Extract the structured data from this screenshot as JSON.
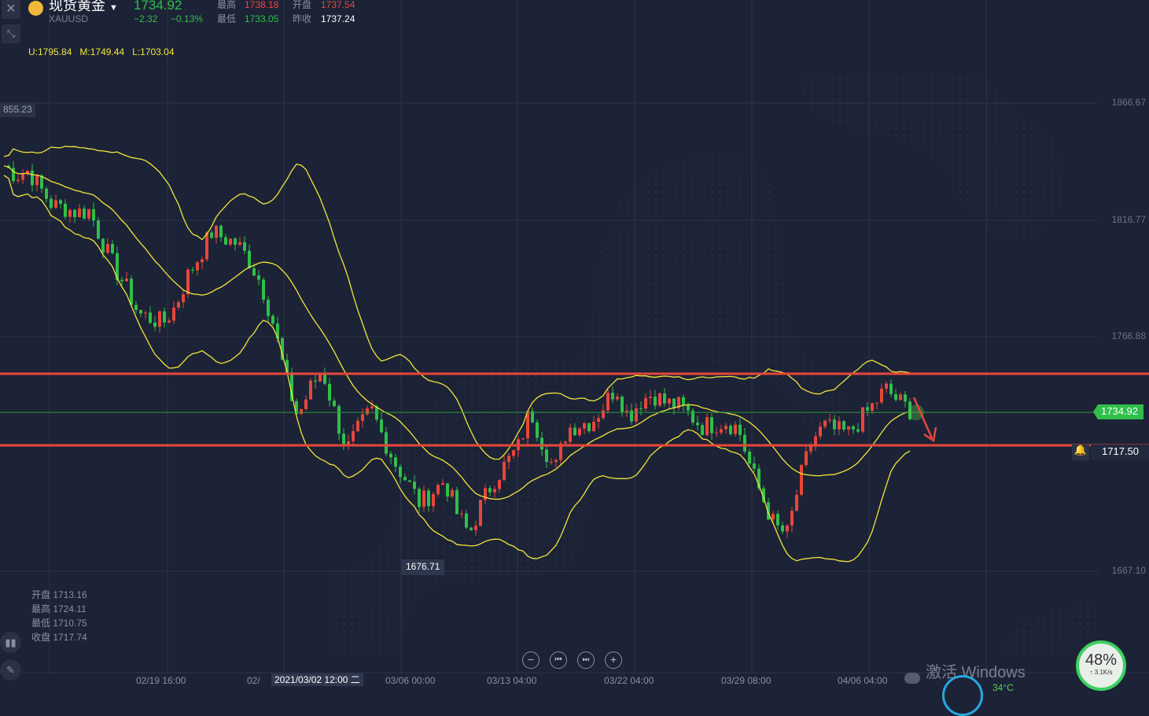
{
  "header": {
    "name": "现货黄金",
    "code": "XAUUSD",
    "price": "1734.92",
    "change": "−2.32",
    "change_pct": "−0.13%",
    "high_label": "最高",
    "high": "1738.18",
    "open_label": "开盘",
    "open": "1737.54",
    "low_label": "最低",
    "low": "1733.05",
    "prev_label": "昨收",
    "prev": "1737.24"
  },
  "bollinger": {
    "u": "U:1795.84",
    "m": "M:1749.44",
    "l": "L:1703.04"
  },
  "cursor": {
    "price": "855.23",
    "time": "2021/03/02 12:00 二"
  },
  "low_marker": "1676.71",
  "ohlc": {
    "open": "开盘 1713.16",
    "high": "最高 1724.11",
    "low": "最低 1710.75",
    "close": "收盘 1717.74"
  },
  "price_axis": [
    "1866.67",
    "1816.77",
    "1766.88",
    "1667.10"
  ],
  "current_price": "1734.92",
  "alert_price": "1717.50",
  "time_axis": [
    "02/19 16:00",
    "02/",
    "03/06 00:00",
    "03/13 04:00",
    "03/22 04:00",
    "03/29 08:00",
    "04/06 04:00"
  ],
  "controls": {
    "zoom_out": "−",
    "prev": "⏮",
    "next": "⏭",
    "zoom_in": "+"
  },
  "overlay": {
    "watermark": "激活 Windows",
    "cpu": "48%",
    "speed": "↑ 3.1K/s",
    "temp": "34°C"
  },
  "colors": {
    "up": "#e8463a",
    "down": "#2fbf4a",
    "bands": "#f2e53c",
    "lines": "#e8463a",
    "bg": "#1c2336"
  },
  "chart_data": {
    "type": "candlestick",
    "indicator": "BOLL(20,2)",
    "y_axis_ticks": [
      1866.67,
      1816.77,
      1766.88,
      1667.1
    ],
    "horizontal_lines": [
      1751.4,
      1720.9
    ],
    "current_price": 1734.92,
    "close_path": [
      1840,
      1836,
      1838,
      1830,
      1823,
      1822,
      1820,
      1821,
      1808,
      1797,
      1788,
      1777,
      1775,
      1773,
      1780,
      1793,
      1802,
      1812,
      1809,
      1807,
      1800,
      1790,
      1773,
      1750,
      1733,
      1745,
      1753,
      1735,
      1719,
      1728,
      1736,
      1724,
      1713,
      1705,
      1696,
      1701,
      1706,
      1692,
      1683,
      1696,
      1706,
      1713,
      1720,
      1736,
      1722,
      1710,
      1728,
      1730,
      1731,
      1738,
      1746,
      1733,
      1740,
      1743,
      1739,
      1738,
      1734,
      1729,
      1730,
      1731,
      1728,
      1711,
      1698,
      1686,
      1683,
      1706,
      1723,
      1729,
      1727,
      1726,
      1732,
      1738,
      1745,
      1740,
      1736
    ]
  }
}
